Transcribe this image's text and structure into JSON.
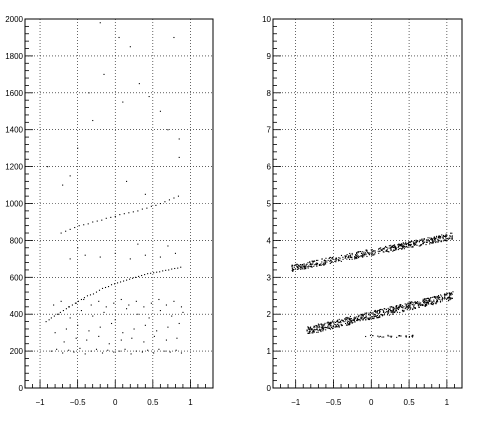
{
  "chart_data": [
    {
      "type": "scatter",
      "xlim": [
        -1.2,
        1.3
      ],
      "ylim": [
        0,
        2000
      ],
      "grid": true,
      "x_ticks": [
        -1,
        -0.5,
        0,
        0.5,
        1
      ],
      "x_tick_labels": [
        "−1",
        "−0.5",
        "0",
        "0.5",
        "1"
      ],
      "y_ticks": [
        0,
        200,
        400,
        600,
        800,
        1000,
        1200,
        1400,
        1600,
        1800,
        2000
      ],
      "y_tick_labels": [
        "0",
        "200",
        "400",
        "600",
        "800",
        "1000",
        "1200",
        "1400",
        "1600",
        "1800",
        "2000"
      ],
      "series": [
        {
          "color": "#000000",
          "x": [
            -0.92,
            -0.88,
            -0.85,
            -0.81,
            -0.77,
            -0.73,
            -0.69,
            -0.65,
            -0.61,
            -0.57,
            -0.53,
            -0.49,
            -0.45,
            -0.41,
            -0.37,
            -0.33,
            -0.29,
            -0.25,
            -0.21,
            -0.17,
            -0.13,
            -0.09,
            -0.05,
            -0.01,
            0.03,
            0.07,
            0.11,
            0.15,
            0.19,
            0.23,
            0.27,
            0.31,
            0.35,
            0.39,
            0.43,
            0.47,
            0.51,
            0.55,
            0.59,
            0.63,
            0.67,
            0.71,
            0.75,
            0.79,
            0.83,
            0.87,
            -0.72,
            -0.66,
            -0.6,
            -0.54,
            -0.48,
            -0.42,
            -0.36,
            -0.3,
            -0.24,
            -0.18,
            -0.12,
            -0.06,
            0.0,
            0.06,
            0.12,
            0.18,
            0.24,
            0.3,
            0.36,
            0.42,
            0.48,
            0.54,
            0.6,
            0.66,
            0.72,
            0.78,
            0.84,
            -0.85,
            -0.78,
            -0.7,
            -0.62,
            -0.55,
            -0.47,
            -0.4,
            -0.32,
            -0.25,
            -0.17,
            -0.1,
            -0.02,
            0.06,
            0.13,
            0.21,
            0.28,
            0.36,
            0.43,
            0.51,
            0.58,
            0.66,
            0.73,
            0.81,
            0.88,
            -0.8,
            -0.65,
            -0.5,
            -0.35,
            -0.2,
            -0.05,
            0.1,
            0.25,
            0.4,
            0.55,
            0.7,
            0.85,
            -0.75,
            -0.6,
            -0.45,
            -0.3,
            -0.15,
            0.0,
            0.15,
            0.3,
            0.45,
            0.6,
            0.75,
            0.9,
            -0.68,
            -0.52,
            -0.38,
            -0.22,
            -0.08,
            0.08,
            0.22,
            0.38,
            0.52,
            0.68,
            0.82,
            -0.82,
            -0.72,
            -0.62,
            -0.52,
            -0.42,
            -0.32,
            -0.22,
            -0.12,
            -0.02,
            0.08,
            0.18,
            0.28,
            0.38,
            0.48,
            0.58,
            0.68,
            0.78,
            0.88,
            -0.6,
            -0.4,
            -0.2,
            0.0,
            0.2,
            0.4,
            0.6,
            0.8,
            -0.5,
            0.3,
            0.7,
            -0.9,
            -0.5,
            -0.3,
            0.1,
            0.45,
            0.7,
            0.85,
            -0.7,
            -0.15,
            0.32,
            0.78,
            -0.2,
            0.05,
            0.2,
            -0.35,
            0.6,
            0.85,
            -0.6,
            0.4,
            0.15
          ],
          "y": [
            360,
            370,
            380,
            390,
            400,
            410,
            420,
            430,
            440,
            450,
            460,
            470,
            480,
            490,
            500,
            505,
            510,
            520,
            530,
            540,
            545,
            550,
            560,
            565,
            570,
            575,
            580,
            585,
            590,
            595,
            600,
            605,
            610,
            615,
            620,
            622,
            625,
            628,
            630,
            635,
            638,
            640,
            645,
            648,
            650,
            655,
            840,
            850,
            860,
            870,
            880,
            885,
            890,
            900,
            905,
            910,
            920,
            925,
            930,
            940,
            945,
            950,
            955,
            960,
            970,
            975,
            985,
            990,
            1000,
            1010,
            1020,
            1030,
            1040,
            200,
            210,
            190,
            205,
            195,
            215,
            185,
            200,
            210,
            190,
            205,
            195,
            200,
            210,
            185,
            200,
            195,
            205,
            190,
            210,
            200,
            195,
            205,
            190,
            300,
            320,
            340,
            310,
            330,
            350,
            300,
            320,
            340,
            310,
            330,
            350,
            400,
            380,
            420,
            390,
            410,
            370,
            430,
            400,
            380,
            420,
            390,
            410,
            250,
            270,
            260,
            280,
            240,
            260,
            270,
            250,
            280,
            260,
            270,
            450,
            470,
            440,
            460,
            480,
            450,
            470,
            440,
            460,
            480,
            450,
            470,
            440,
            460,
            480,
            450,
            470,
            440,
            700,
            720,
            710,
            730,
            700,
            720,
            710,
            730,
            760,
            780,
            770,
            1200,
            1300,
            1450,
            1550,
            1580,
            1400,
            1250,
            1100,
            1700,
            1650,
            1900,
            1980,
            1900,
            1850,
            1600,
            1500,
            1350,
            1150,
            1050,
            1120
          ]
        }
      ]
    },
    {
      "type": "scatter",
      "xlim": [
        -1.3,
        1.2
      ],
      "ylim": [
        0,
        10
      ],
      "grid": true,
      "x_ticks": [
        -1,
        -0.5,
        0,
        0.5,
        1
      ],
      "x_tick_labels": [
        "−1",
        "−0.5",
        "0",
        "0.5",
        "1"
      ],
      "y_ticks": [
        0,
        1,
        2,
        3,
        4,
        5,
        6,
        7,
        8,
        9,
        10
      ],
      "y_tick_labels": [
        "0",
        "1",
        "2",
        "3",
        "4",
        "5",
        "6",
        "7",
        "8",
        "9",
        "10"
      ],
      "series": [
        {
          "color": "#000000",
          "band_upper": {
            "x_from": -1.05,
            "x_to": 1.08,
            "y_from": 3.25,
            "y_to": 4.12
          },
          "band_lower": {
            "x_from": -0.85,
            "x_to": 1.08,
            "y_from": 1.55,
            "y_to": 2.5
          },
          "tail": {
            "x_from": -0.1,
            "x_to": 0.6,
            "y": 1.4
          }
        }
      ]
    }
  ]
}
